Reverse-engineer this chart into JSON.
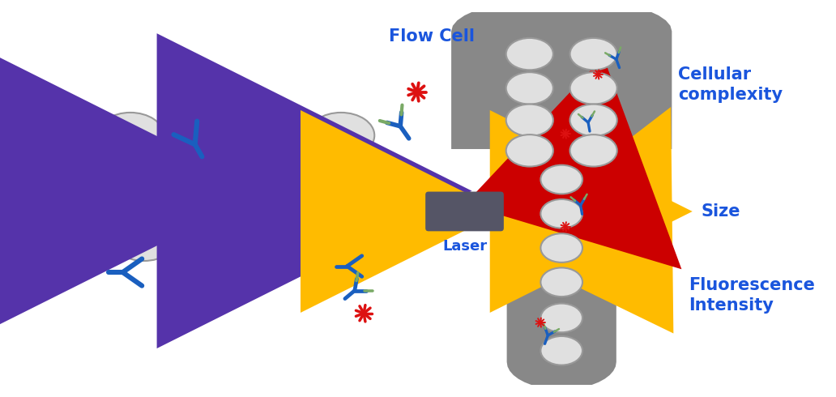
{
  "bg_color": "#ffffff",
  "cell_color": "#e0e0e0",
  "cell_edge_color": "#999999",
  "antibody_blue": "#1a5fbf",
  "antibody_green": "#7aaa66",
  "red_star_color": "#dd1111",
  "arrow_purple": "#5533aa",
  "arrow_yellow": "#ffbb00",
  "arrow_red": "#cc0000",
  "flow_cell_color": "#888888",
  "laser_color": "#555566",
  "label_blue": "#1a55dd",
  "flow_cell_label": "Flow Cell",
  "laser_label": "Laser",
  "complexity_label": "Cellular\ncomplexity",
  "size_label": "Size",
  "fluor_label": "Fluorescence\nIntensity",
  "figw": 10.32,
  "figh": 4.9
}
